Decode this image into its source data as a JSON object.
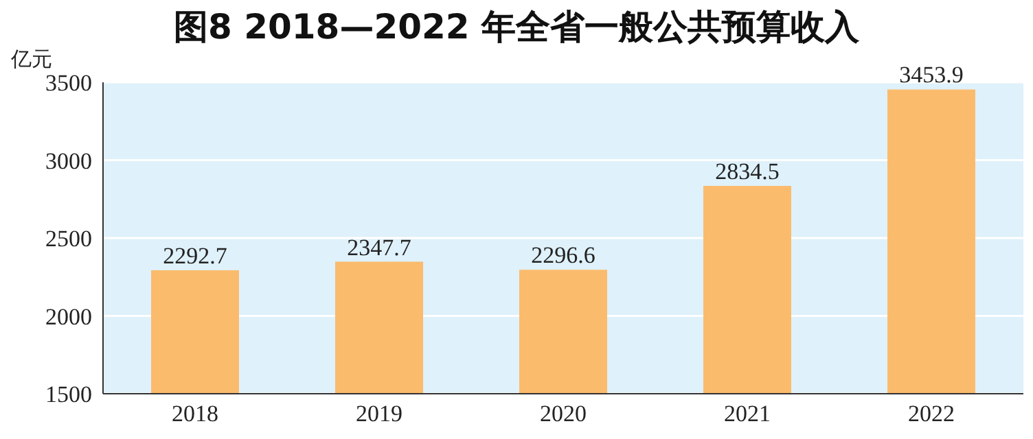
{
  "chart_data": {
    "type": "bar",
    "title": "图8   2018—2022 年全省一般公共预算收入",
    "ylabel": "亿元",
    "categories": [
      "2018",
      "2019",
      "2020",
      "2021",
      "2022"
    ],
    "values": [
      2292.7,
      2347.7,
      2296.6,
      2834.5,
      3453.9
    ],
    "color": "#fbbb6d",
    "ylim": [
      1500,
      3500
    ],
    "yticks": [
      1500,
      2000,
      2500,
      3000,
      3500
    ],
    "grid": "y",
    "data_labels": true
  }
}
